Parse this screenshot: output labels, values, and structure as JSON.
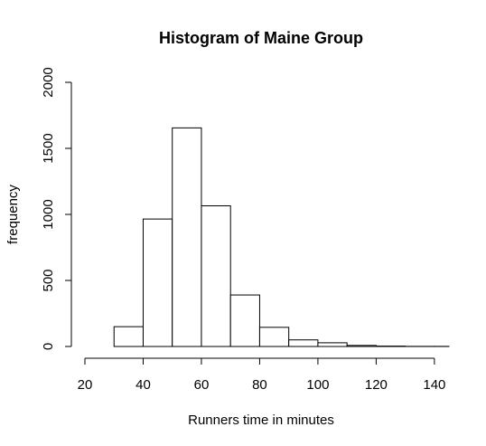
{
  "chart_data": {
    "type": "bar",
    "title": "Histogram of Maine Group",
    "xlabel": "Runners time in minutes",
    "ylabel": "frequency",
    "xlim": [
      20,
      145
    ],
    "ylim": [
      0,
      2000
    ],
    "xticks": [
      20,
      40,
      60,
      80,
      100,
      120,
      140
    ],
    "yticks": [
      0,
      500,
      1000,
      1500,
      2000
    ],
    "bins": [
      {
        "from": 30,
        "to": 40,
        "count": 150
      },
      {
        "from": 40,
        "to": 50,
        "count": 965
      },
      {
        "from": 50,
        "to": 60,
        "count": 1655
      },
      {
        "from": 60,
        "to": 70,
        "count": 1065
      },
      {
        "from": 70,
        "to": 80,
        "count": 390
      },
      {
        "from": 80,
        "to": 90,
        "count": 145
      },
      {
        "from": 90,
        "to": 100,
        "count": 50
      },
      {
        "from": 100,
        "to": 110,
        "count": 28
      },
      {
        "from": 110,
        "to": 120,
        "count": 8
      },
      {
        "from": 120,
        "to": 130,
        "count": 3
      },
      {
        "from": 130,
        "to": 140,
        "count": 1
      },
      {
        "from": 140,
        "to": 145,
        "count": 1
      }
    ],
    "grid": false
  }
}
